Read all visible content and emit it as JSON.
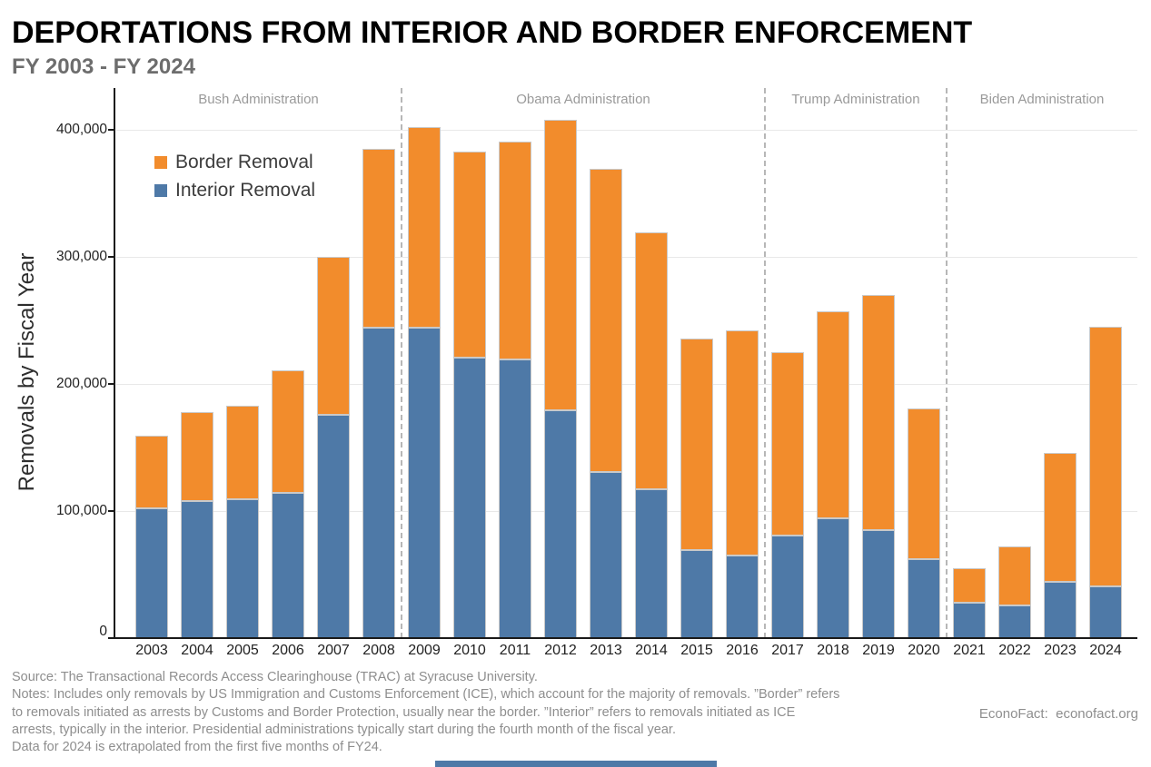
{
  "chart_data": {
    "type": "bar",
    "stacked": true,
    "title": "DEPORTATIONS FROM INTERIOR AND BORDER ENFORCEMENT",
    "subtitle": "FY 2003 - FY 2024",
    "ylabel": "Removals by Fiscal Year",
    "xlabel": "",
    "ylim": [
      0,
      420000
    ],
    "yticks": [
      0,
      100000,
      200000,
      300000,
      400000
    ],
    "ytick_labels": [
      "0",
      "100,000",
      "200,000",
      "300,000",
      "400,000"
    ],
    "grid": true,
    "legend_position": "top-left-inside",
    "categories": [
      "2003",
      "2004",
      "2005",
      "2006",
      "2007",
      "2008",
      "2009",
      "2010",
      "2011",
      "2012",
      "2013",
      "2014",
      "2015",
      "2016",
      "2017",
      "2018",
      "2019",
      "2020",
      "2021",
      "2022",
      "2023",
      "2024"
    ],
    "series": [
      {
        "name": "Border Removal",
        "color": "#F28C2C",
        "values": [
          57000,
          70000,
          74000,
          97000,
          124000,
          141000,
          158000,
          162000,
          172000,
          229000,
          238000,
          202000,
          167000,
          177000,
          144000,
          163000,
          185000,
          119000,
          27000,
          46000,
          102000,
          204000
        ]
      },
      {
        "name": "Interior Removal",
        "color": "#4E79A7",
        "values": [
          102000,
          108000,
          109000,
          114000,
          176000,
          244000,
          244000,
          221000,
          219000,
          179000,
          131000,
          117000,
          69000,
          65000,
          81000,
          94000,
          85000,
          62000,
          28000,
          26000,
          44000,
          41000
        ]
      }
    ],
    "totals": [
      159000,
      178000,
      183000,
      211000,
      300000,
      385000,
      402000,
      383000,
      391000,
      408000,
      369000,
      319000,
      236000,
      242000,
      225000,
      257000,
      270000,
      181000,
      55000,
      72000,
      146000,
      245000
    ],
    "sections": [
      {
        "label": "Bush Administration",
        "years": "2003-2008"
      },
      {
        "label": "Obama Administration",
        "years": "2009-2016"
      },
      {
        "label": "Trump Administration",
        "years": "2017-2020"
      },
      {
        "label": "Biden Administration",
        "years": "2021-2024"
      }
    ],
    "section_dividers_after": [
      "2008",
      "2016",
      "2020"
    ]
  },
  "footer": {
    "lines": [
      "Source: The Transactional Records Access Clearinghouse (TRAC) at Syracuse University.",
      "Notes: Includes only removals by US Immigration and Customs Enforcement (ICE), which account for the majority of removals. ”Border” refers",
      "to removals initiated as arrests by Customs and Border Protection, usually near the border. ”Interior” refers to removals initiated as ICE",
      "arrests, typically in the interior. Presidential administrations typically start during the fourth month of the fiscal year.",
      "Data for 2024 is extrapolated from the first five months of FY24."
    ],
    "credit": "EconoFact:  econofact.org"
  },
  "colors": {
    "border_removal": "#F28C2C",
    "interior_removal": "#4E79A7",
    "axis": "#1a1a1a",
    "gridline": "#e8e8e8",
    "section_label": "#9a9a9a",
    "footer_text": "#8e8e8e"
  }
}
